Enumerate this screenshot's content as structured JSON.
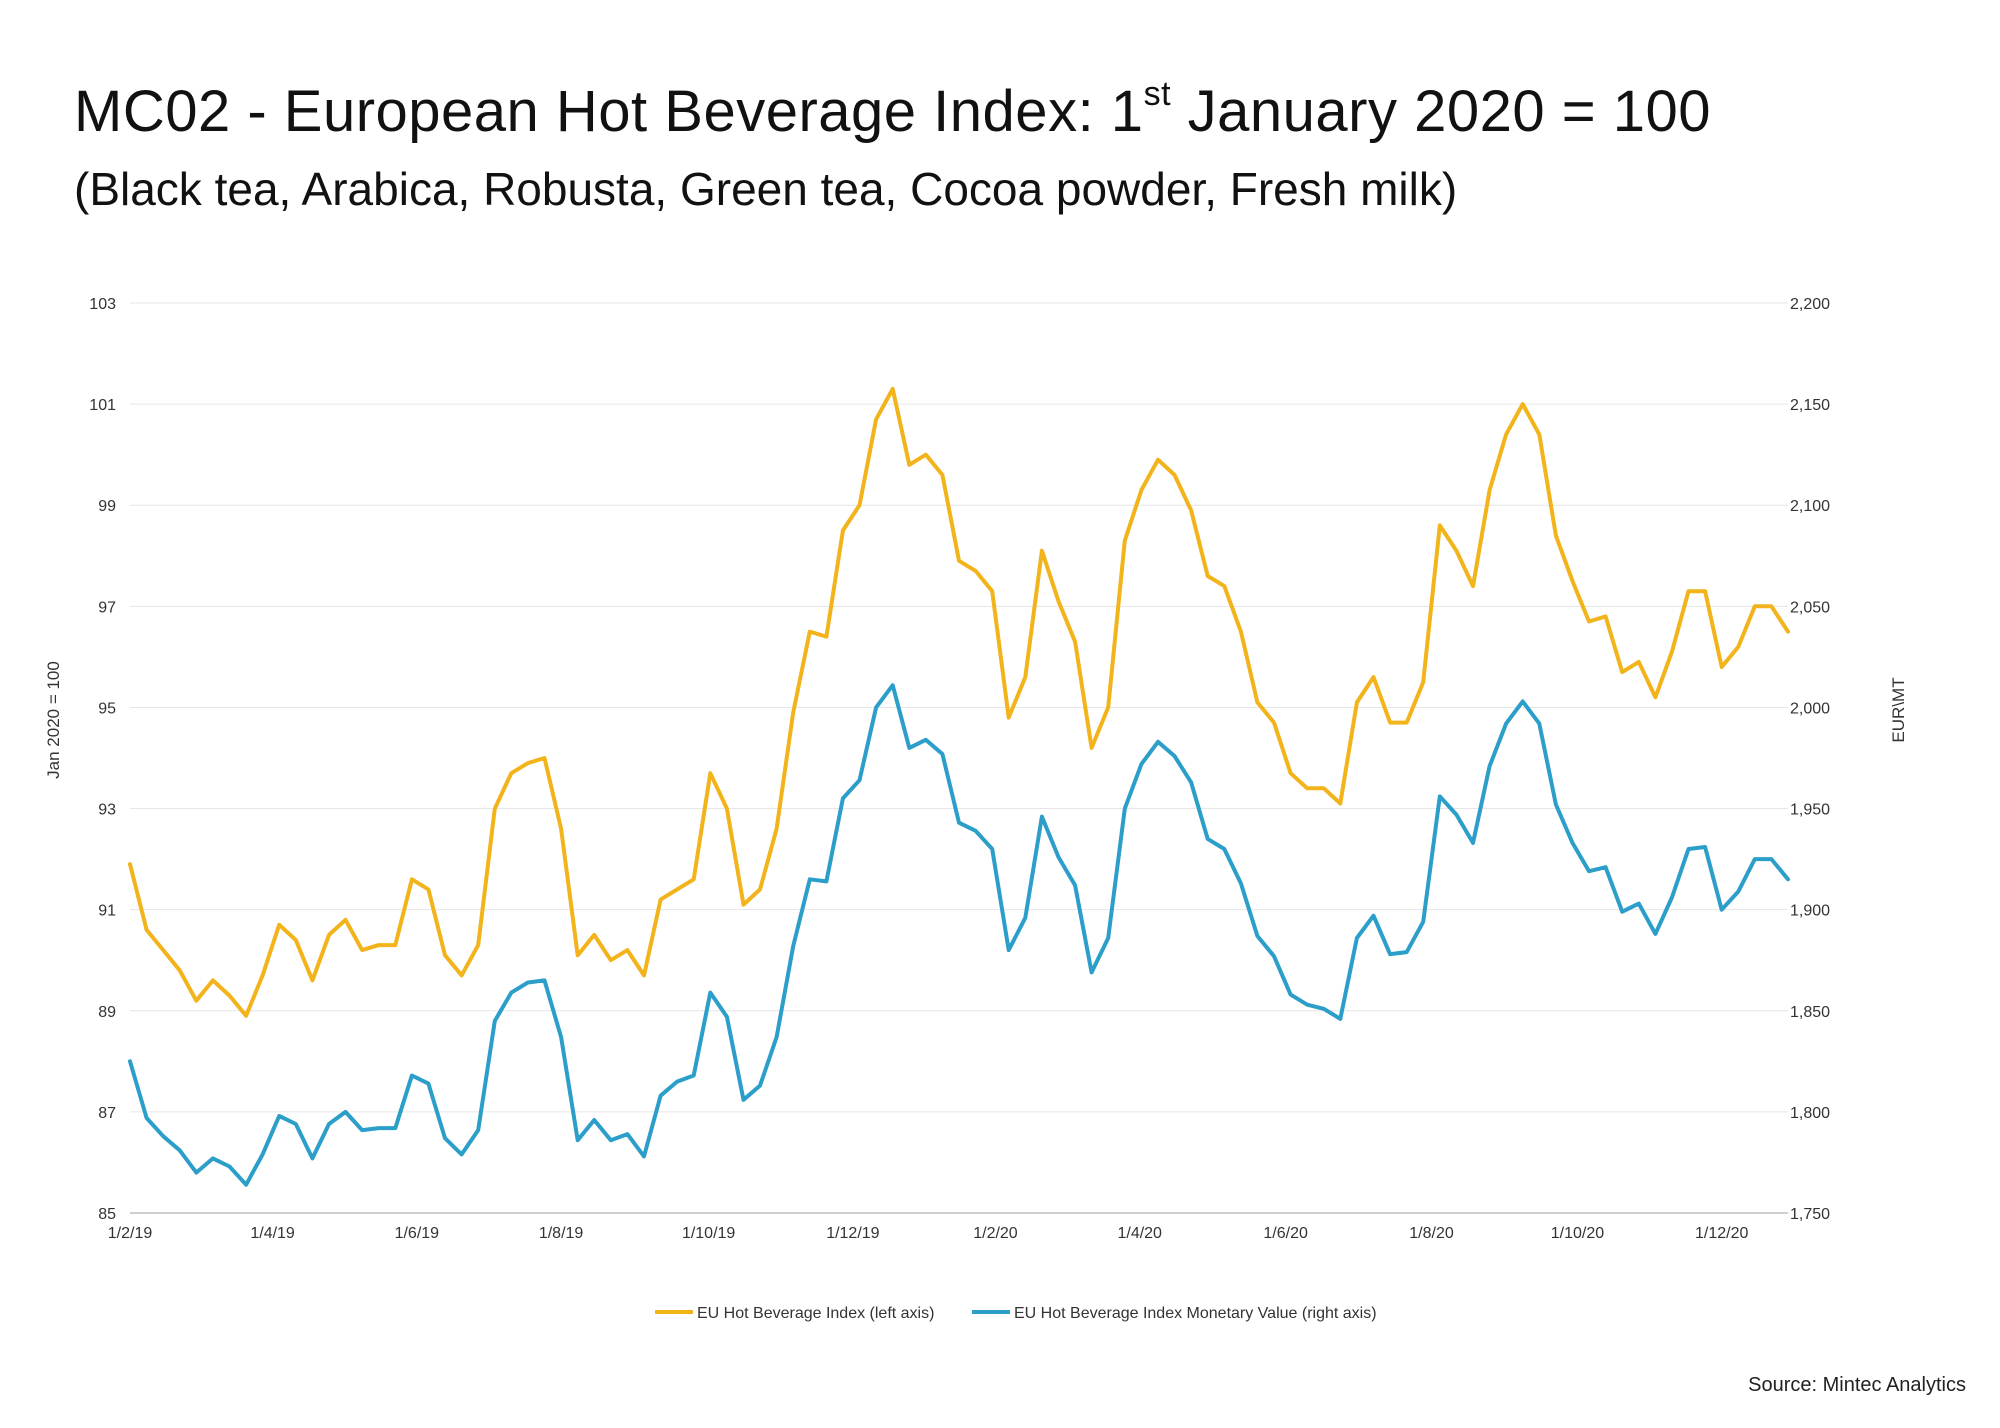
{
  "header": {
    "title_main": "MC02 - European Hot Beverage Index: 1",
    "title_sup": "st",
    "title_end": " January 2020 = 100",
    "subtitle": "(Black tea, Arabica, Robusta, Green tea, Cocoa powder, Fresh milk)"
  },
  "source": "Source: Mintec Analytics",
  "colors": {
    "index": "#f2b31b",
    "monetary": "#2b9ec9",
    "grid": "#e6e6e6"
  },
  "chart_data": {
    "type": "line",
    "ylabel_left": "Jan  2020 = 100",
    "ylabel_right": "EUR\\MT",
    "ylim_left": [
      85,
      103
    ],
    "ylim_right": [
      1750,
      2200
    ],
    "yticks_left": [
      "85",
      "87",
      "89",
      "91",
      "93",
      "95",
      "97",
      "99",
      "101",
      "103"
    ],
    "yticks_right": [
      "1,750",
      "1,800",
      "1,850",
      "1,900",
      "1,950",
      "2,000",
      "2,050",
      "2,100",
      "2,150",
      "2,200"
    ],
    "xticks": [
      "1/2/19",
      "1/4/19",
      "1/6/19",
      "1/8/19",
      "1/10/19",
      "1/12/19",
      "1/2/20",
      "1/4/20",
      "1/6/20",
      "1/8/20",
      "1/10/20",
      "1/12/20"
    ],
    "grid": true,
    "legend_position": "bottom",
    "series": [
      {
        "name": "EU Hot Beverage Index (left axis)",
        "axis": "left",
        "values": [
          91.9,
          90.6,
          90.2,
          89.8,
          89.2,
          89.6,
          89.3,
          88.9,
          89.7,
          90.7,
          90.4,
          89.6,
          90.5,
          90.8,
          90.2,
          90.3,
          90.3,
          91.6,
          91.4,
          90.1,
          89.7,
          90.3,
          93.0,
          93.7,
          93.9,
          94.0,
          92.6,
          90.1,
          90.5,
          90.0,
          90.2,
          89.7,
          91.2,
          91.4,
          91.6,
          93.7,
          93.0,
          91.1,
          91.4,
          92.6,
          94.9,
          96.5,
          96.4,
          98.5,
          99.0,
          100.7,
          101.3,
          99.8,
          100.0,
          99.6,
          97.9,
          97.7,
          97.3,
          94.8,
          95.6,
          98.1,
          97.1,
          96.3,
          94.2,
          95.0,
          98.3,
          99.3,
          99.9,
          99.6,
          98.9,
          97.6,
          97.4,
          96.5,
          95.1,
          94.7,
          93.7,
          93.4,
          93.4,
          93.1,
          95.1,
          95.6,
          94.7,
          94.7,
          95.5,
          98.6,
          98.1,
          97.4,
          99.3,
          100.4,
          101.0,
          100.4,
          98.4,
          97.5,
          96.7,
          96.8,
          95.7,
          95.9,
          95.2,
          96.1,
          97.3,
          97.3,
          95.8,
          96.2,
          97.0,
          97.0,
          96.5
        ]
      },
      {
        "name": "EU Hot Beverage Index Monetary Value (right axis)",
        "axis": "right",
        "values": [
          1825,
          1797,
          1788,
          1781,
          1770,
          1777,
          1773,
          1764,
          1779,
          1798,
          1794,
          1777,
          1794,
          1800,
          1791,
          1792,
          1792,
          1818,
          1814,
          1787,
          1779,
          1791,
          1845,
          1859,
          1864,
          1865,
          1837,
          1786,
          1796,
          1786,
          1789,
          1778,
          1808,
          1815,
          1818,
          1859,
          1847,
          1806,
          1813,
          1837,
          1882,
          1915,
          1914,
          1955,
          1964,
          2000,
          2011,
          1980,
          1984,
          1977,
          1943,
          1939,
          1930,
          1880,
          1896,
          1946,
          1926,
          1912,
          1869,
          1886,
          1950,
          1972,
          1983,
          1976,
          1963,
          1935,
          1930,
          1913,
          1887,
          1877,
          1858,
          1853,
          1851,
          1846,
          1886,
          1897,
          1878,
          1879,
          1894,
          1956,
          1947,
          1933,
          1971,
          1992,
          2003,
          1992,
          1952,
          1933,
          1919,
          1921,
          1899,
          1903,
          1888,
          1906,
          1930,
          1931,
          1900,
          1909,
          1925,
          1925,
          1915
        ]
      }
    ]
  }
}
